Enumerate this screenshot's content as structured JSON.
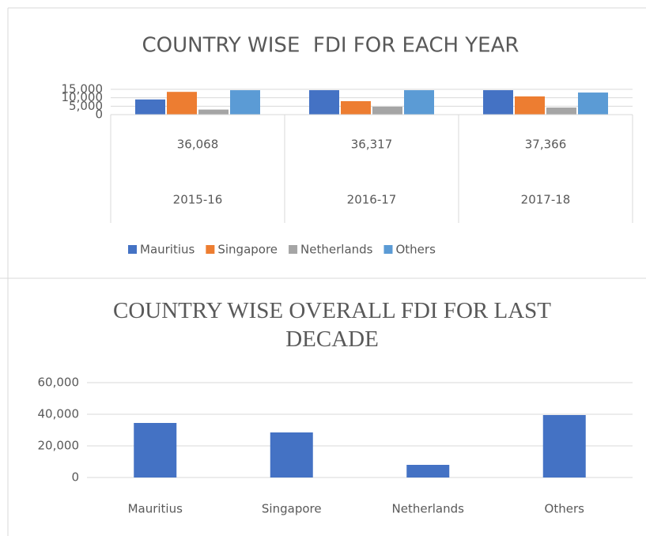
{
  "chart_data": [
    {
      "type": "bar",
      "title": "COUNTRY WISE  FDI FOR EACH YEAR",
      "categories": [
        "2015-16",
        "2016-17",
        "2017-18"
      ],
      "category_groups": [
        "36,068",
        "36,317",
        "37,366"
      ],
      "series": [
        {
          "name": "Mauritius",
          "color": "#4472c4",
          "values": [
            9000,
            14500,
            14500
          ]
        },
        {
          "name": "Singapore",
          "color": "#ed7d31",
          "values": [
            13500,
            8000,
            10800
          ]
        },
        {
          "name": "Netherlands",
          "color": "#a5a5a5",
          "values": [
            3000,
            4700,
            4200
          ]
        },
        {
          "name": "Others",
          "color": "#5b9bd5",
          "values": [
            14500,
            14500,
            13100
          ]
        }
      ],
      "ylim": [
        0,
        15000
      ],
      "yticks": [
        0,
        {
          "value": 5000,
          "label": "5,000"
        },
        {
          "value": 10000,
          "label": "10,000"
        },
        {
          "value": 15000,
          "label": "15,000"
        }
      ],
      "grid": true,
      "legend": "bottom"
    },
    {
      "type": "bar",
      "title": "COUNTRY WISE OVERALL FDI FOR LAST DECADE",
      "categories": [
        "Mauritius",
        "Singapore",
        "Netherlands",
        "Others"
      ],
      "values": [
        34500,
        28500,
        8000,
        39500
      ],
      "color": "#4472c4",
      "ylim": [
        0,
        60000
      ],
      "yticks": [
        0,
        {
          "value": 20000,
          "label": "20,000"
        },
        {
          "value": 40000,
          "label": "40,000"
        },
        {
          "value": 60000,
          "label": "60,000"
        }
      ],
      "grid": true
    }
  ]
}
